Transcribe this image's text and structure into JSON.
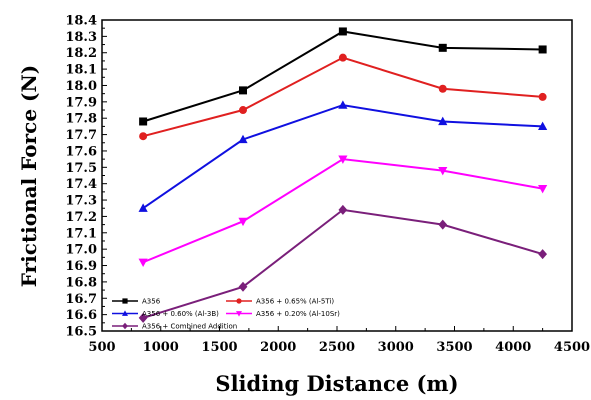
{
  "chart_data": {
    "type": "line",
    "title": "",
    "xlabel": "Sliding Distance (m)",
    "ylabel": "Frictional Force (N)",
    "xlim": [
      500,
      4500
    ],
    "ylim": [
      16.5,
      18.4
    ],
    "xticks": [
      "500",
      "1000",
      "1500",
      "2000",
      "2500",
      "3000",
      "3500",
      "4000",
      "4500"
    ],
    "yticks": [
      "16.5",
      "16.6",
      "16.7",
      "16.8",
      "16.9",
      "17.0",
      "17.1",
      "17.2",
      "17.3",
      "17.4",
      "17.5",
      "17.6",
      "17.7",
      "17.8",
      "17.9",
      "18.0",
      "18.1",
      "18.2",
      "18.3",
      "18.4"
    ],
    "x": [
      850,
      1700,
      2550,
      3400,
      4250
    ],
    "grid": false,
    "legend_position": "bottom-left",
    "series": [
      {
        "name": "A356",
        "color": "#000000",
        "marker": "square",
        "values": [
          17.78,
          17.97,
          18.33,
          18.23,
          18.22
        ]
      },
      {
        "name": "A356 + 0.65% (Al-5Ti)",
        "color": "#e02020",
        "marker": "circle",
        "values": [
          17.69,
          17.85,
          18.17,
          17.98,
          17.93
        ]
      },
      {
        "name": "A356 + 0.60% (Al-3B)",
        "color": "#1010e0",
        "marker": "triangle-up",
        "values": [
          17.25,
          17.67,
          17.88,
          17.78,
          17.75
        ]
      },
      {
        "name": "A356 + 0.20% (Al-10Sr)",
        "color": "#ff00ff",
        "marker": "triangle-down",
        "values": [
          16.92,
          17.17,
          17.55,
          17.48,
          17.37
        ]
      },
      {
        "name": "A356 + Combined Addition",
        "color": "#7a1f7a",
        "marker": "diamond",
        "values": [
          16.58,
          16.77,
          17.24,
          17.15,
          16.97
        ]
      }
    ]
  }
}
